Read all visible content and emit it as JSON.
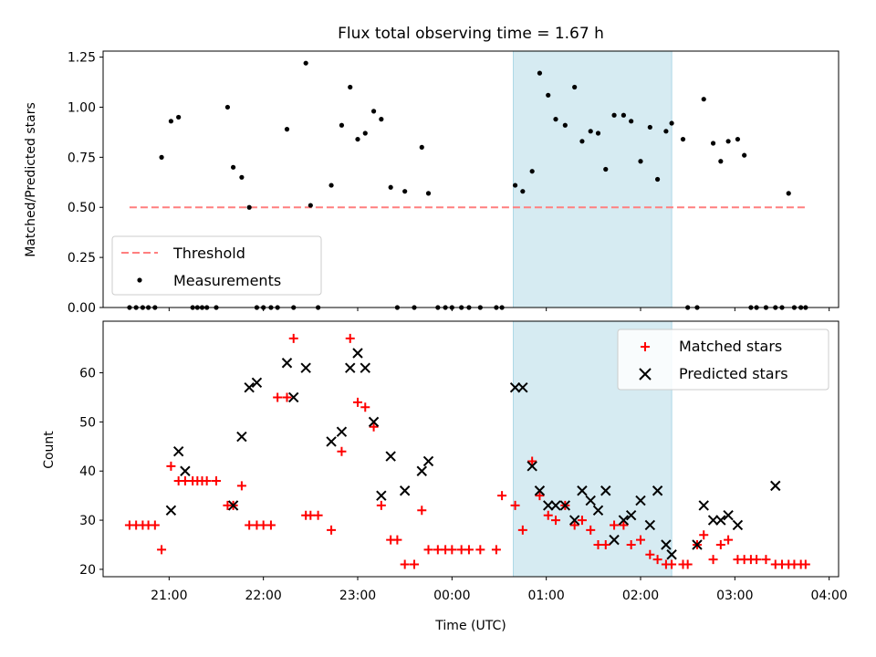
{
  "chart_data": {
    "type": "scatter",
    "title": "Flux total observing time = 1.67 h",
    "x_ticks": [
      "21:00",
      "22:00",
      "23:00",
      "00:00",
      "01:00",
      "02:00",
      "03:00",
      "04:00"
    ],
    "xlabel": "Time (UTC)",
    "x_range_hours": [
      20.3,
      28.1
    ],
    "x_note": "x values are decimal hours UTC; values above 24 are after midnight",
    "highlight_span": {
      "start": 24.65,
      "end": 26.33,
      "color": "#add8e6"
    },
    "panels": [
      {
        "ylabel": "Matched/Predicted stars",
        "ylim": [
          0,
          1.28
        ],
        "y_ticks": [
          "0.00",
          "0.25",
          "0.50",
          "0.75",
          "1.00",
          "1.25"
        ],
        "legend_position": "lower-left",
        "series": [
          {
            "name": "Threshold",
            "kind": "line",
            "style": "dashed",
            "color": "#ff7f7f",
            "x": [
              20.58,
              27.75
            ],
            "y": [
              0.5,
              0.5
            ]
          },
          {
            "name": "Measurements",
            "kind": "points",
            "color": "#000000",
            "x": [
              20.58,
              20.65,
              20.72,
              20.78,
              20.85,
              20.92,
              21.02,
              21.1,
              21.25,
              21.3,
              21.35,
              21.4,
              21.5,
              21.62,
              21.68,
              21.77,
              21.85,
              21.93,
              22.0,
              22.08,
              22.15,
              22.25,
              22.32,
              22.45,
              22.5,
              22.58,
              22.72,
              22.83,
              22.92,
              23.0,
              23.08,
              23.17,
              23.25,
              23.35,
              23.42,
              23.5,
              23.6,
              23.68,
              23.75,
              23.85,
              23.93,
              24.0,
              24.1,
              24.18,
              24.3,
              24.47,
              24.53,
              24.67,
              24.75,
              24.85,
              24.93,
              25.02,
              25.1,
              25.2,
              25.3,
              25.38,
              25.47,
              25.55,
              25.63,
              25.72,
              25.82,
              25.9,
              26.0,
              26.1,
              26.18,
              26.27,
              26.33,
              26.45,
              26.5,
              26.6,
              26.67,
              26.77,
              26.85,
              26.93,
              27.03,
              27.1,
              27.17,
              27.23,
              27.33,
              27.43,
              27.5,
              27.57,
              27.63,
              27.7,
              27.75
            ],
            "y": [
              0,
              0,
              0,
              0,
              0,
              0.75,
              0.93,
              0.95,
              0,
              0,
              0,
              0,
              0,
              1.0,
              0.7,
              0.65,
              0.5,
              0,
              0,
              0,
              0,
              0.89,
              0,
              1.22,
              0.51,
              0,
              0.61,
              0.91,
              1.1,
              0.84,
              0.87,
              0.98,
              0.94,
              0.6,
              0,
              0.58,
              0,
              0.8,
              0.57,
              0,
              0,
              0,
              0,
              0,
              0,
              0,
              0,
              0.61,
              0.58,
              0.68,
              1.17,
              1.06,
              0.94,
              0.91,
              1.1,
              0.83,
              0.88,
              0.87,
              0.69,
              0.96,
              0.96,
              0.93,
              0.73,
              0.9,
              0.64,
              0.88,
              0.92,
              0.84,
              0,
              0,
              1.04,
              0.82,
              0.73,
              0.83,
              0.84,
              0.76,
              0,
              0,
              0,
              0,
              0,
              0.57,
              0,
              0,
              0
            ]
          }
        ]
      },
      {
        "ylabel": "Count",
        "ylim": [
          18.5,
          70.5
        ],
        "y_ticks": [
          "20",
          "30",
          "40",
          "50",
          "60"
        ],
        "legend_position": "top-right",
        "series": [
          {
            "name": "Matched stars",
            "kind": "plus",
            "color": "#ff0000",
            "x": [
              20.58,
              20.65,
              20.72,
              20.78,
              20.85,
              20.92,
              21.02,
              21.1,
              21.17,
              21.25,
              21.3,
              21.35,
              21.4,
              21.5,
              21.62,
              21.68,
              21.77,
              21.85,
              21.93,
              22.0,
              22.08,
              22.15,
              22.25,
              22.32,
              22.45,
              22.5,
              22.58,
              22.72,
              22.83,
              22.92,
              23.0,
              23.08,
              23.17,
              23.25,
              23.35,
              23.42,
              23.5,
              23.6,
              23.68,
              23.75,
              23.85,
              23.93,
              24.0,
              24.1,
              24.18,
              24.3,
              24.47,
              24.53,
              24.67,
              24.75,
              24.85,
              24.93,
              25.02,
              25.1,
              25.2,
              25.3,
              25.38,
              25.47,
              25.55,
              25.63,
              25.72,
              25.82,
              25.9,
              26.0,
              26.1,
              26.18,
              26.27,
              26.33,
              26.45,
              26.5,
              26.6,
              26.67,
              26.77,
              26.85,
              26.93,
              27.03,
              27.1,
              27.17,
              27.23,
              27.33,
              27.43,
              27.5,
              27.57,
              27.63,
              27.7,
              27.75
            ],
            "y": [
              29,
              29,
              29,
              29,
              29,
              24,
              41,
              38,
              38,
              38,
              38,
              38,
              38,
              38,
              33,
              33,
              37,
              29,
              29,
              29,
              29,
              55,
              55,
              67,
              31,
              31,
              31,
              28,
              44,
              67,
              54,
              53,
              49,
              33,
              26,
              26,
              21,
              21,
              32,
              24,
              24,
              24,
              24,
              24,
              24,
              24,
              24,
              35,
              33,
              28,
              42,
              35,
              31,
              30,
              33,
              29,
              30,
              28,
              25,
              25,
              29,
              29,
              25,
              26,
              23,
              22,
              21,
              21,
              21,
              21,
              25,
              27,
              22,
              25,
              26,
              22,
              22,
              22,
              22,
              22,
              21,
              21,
              21,
              21,
              21,
              21
            ]
          },
          {
            "name": "Predicted stars",
            "kind": "x",
            "color": "#000000",
            "x": [
              21.02,
              21.1,
              21.17,
              21.68,
              21.77,
              21.85,
              21.93,
              22.25,
              22.32,
              22.45,
              22.72,
              22.83,
              22.92,
              23.0,
              23.08,
              23.17,
              23.25,
              23.35,
              23.5,
              23.68,
              23.75,
              24.67,
              24.75,
              24.85,
              24.93,
              25.02,
              25.1,
              25.2,
              25.3,
              25.38,
              25.47,
              25.55,
              25.63,
              25.72,
              25.82,
              25.9,
              26.0,
              26.1,
              26.18,
              26.27,
              26.33,
              26.6,
              26.67,
              26.77,
              26.85,
              26.93,
              27.03,
              27.43
            ],
            "y": [
              32,
              44,
              40,
              33,
              47,
              57,
              58,
              62,
              55,
              61,
              46,
              48,
              61,
              64,
              61,
              50,
              35,
              43,
              36,
              40,
              42,
              57,
              57,
              41,
              36,
              33,
              33,
              33,
              30,
              36,
              34,
              32,
              36,
              26,
              30,
              31,
              34,
              29,
              36,
              25,
              23,
              25,
              33,
              30,
              30,
              31,
              29,
              37
            ]
          }
        ]
      }
    ]
  }
}
